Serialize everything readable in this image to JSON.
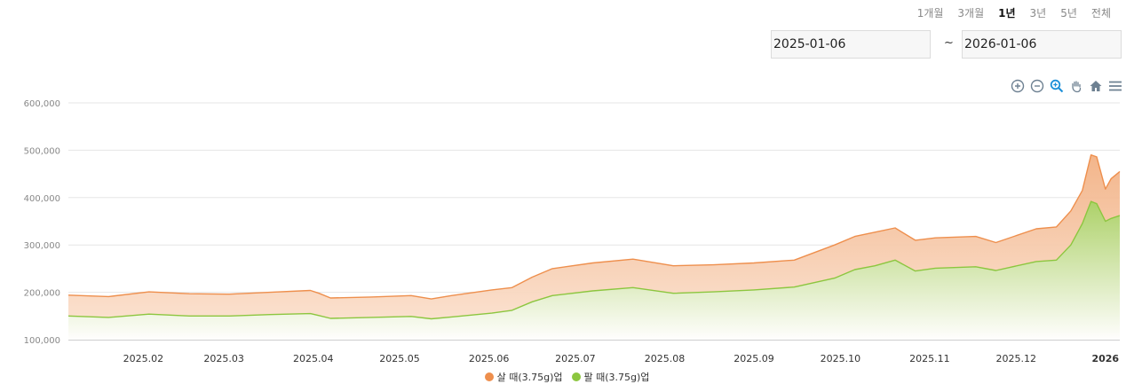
{
  "periods": [
    {
      "label": "1개월",
      "active": false
    },
    {
      "label": "3개월",
      "active": false
    },
    {
      "label": "1년",
      "active": true
    },
    {
      "label": "3년",
      "active": false
    },
    {
      "label": "5년",
      "active": false
    },
    {
      "label": "전체",
      "active": false
    }
  ],
  "date_range": {
    "start": "2025-01-06",
    "separator": "~",
    "end": "2026-01-06"
  },
  "toolbar": [
    "zoom-in-icon",
    "zoom-out-icon",
    "selection-zoom-icon",
    "pan-icon",
    "reset-home-icon",
    "menu-icon"
  ],
  "colors": {
    "buy": "#ee8f4d",
    "buy_fill": "#f6c8a5",
    "sell": "#8cc63f",
    "sell_fill": "#c4df9c",
    "grid": "#e6e6e6",
    "axis_text": "#888888"
  },
  "chart_data": {
    "type": "area",
    "xlabel": "",
    "ylabel": "",
    "ylim": [
      100000,
      600000
    ],
    "y_ticks": [
      "100,000",
      "200,000",
      "300,000",
      "400,000",
      "500,000",
      "600,000"
    ],
    "y_tick_values": [
      100000,
      200000,
      300000,
      400000,
      500000,
      600000
    ],
    "x_ticks": [
      {
        "label": "2025.02",
        "date": "2025-02-01",
        "bold": false
      },
      {
        "label": "2025.03",
        "date": "2025-03-01",
        "bold": false
      },
      {
        "label": "2025.04",
        "date": "2025-04-01",
        "bold": false
      },
      {
        "label": "2025.05",
        "date": "2025-05-01",
        "bold": false
      },
      {
        "label": "2025.06",
        "date": "2025-06-01",
        "bold": false
      },
      {
        "label": "2025.07",
        "date": "2025-07-01",
        "bold": false
      },
      {
        "label": "2025.08",
        "date": "2025-08-01",
        "bold": false
      },
      {
        "label": "2025.09",
        "date": "2025-09-01",
        "bold": false
      },
      {
        "label": "2025.10",
        "date": "2025-10-01",
        "bold": false
      },
      {
        "label": "2025.11",
        "date": "2025-11-01",
        "bold": false
      },
      {
        "label": "2025.12",
        "date": "2025-12-01",
        "bold": false
      },
      {
        "label": "2026",
        "date": "2026-01-01",
        "bold": true
      }
    ],
    "x": [
      "2025-01-06",
      "2025-01-20",
      "2025-02-03",
      "2025-02-17",
      "2025-03-03",
      "2025-03-17",
      "2025-03-31",
      "2025-04-03",
      "2025-04-07",
      "2025-04-21",
      "2025-05-05",
      "2025-05-12",
      "2025-05-19",
      "2025-06-02",
      "2025-06-09",
      "2025-06-16",
      "2025-06-23",
      "2025-07-07",
      "2025-07-21",
      "2025-08-04",
      "2025-08-18",
      "2025-09-01",
      "2025-09-15",
      "2025-09-29",
      "2025-10-06",
      "2025-10-13",
      "2025-10-20",
      "2025-10-27",
      "2025-11-03",
      "2025-11-17",
      "2025-11-24",
      "2025-12-08",
      "2025-12-15",
      "2025-12-20",
      "2025-12-24",
      "2025-12-27",
      "2025-12-29",
      "2026-01-01",
      "2026-01-03",
      "2026-01-06"
    ],
    "series": [
      {
        "name": "살 때(3.75g)",
        "values": [
          194000,
          191000,
          201000,
          197000,
          196000,
          200000,
          204000,
          198000,
          188000,
          190000,
          193000,
          186000,
          193000,
          205000,
          210000,
          232000,
          250000,
          262000,
          270000,
          256000,
          258000,
          262000,
          268000,
          300000,
          318000,
          327000,
          336000,
          310000,
          315000,
          318000,
          305000,
          334000,
          338000,
          372000,
          415000,
          490000,
          486000,
          418000,
          440000,
          455000
        ]
      },
      {
        "name": "팔 때(3.75g)",
        "values": [
          150000,
          147000,
          154000,
          150000,
          150000,
          153000,
          155000,
          151000,
          145000,
          147000,
          149000,
          144000,
          148000,
          156000,
          162000,
          180000,
          193000,
          203000,
          210000,
          198000,
          201000,
          205000,
          211000,
          230000,
          248000,
          256000,
          268000,
          245000,
          251000,
          254000,
          246000,
          265000,
          268000,
          300000,
          345000,
          392000,
          387000,
          350000,
          356000,
          362000
        ]
      }
    ]
  },
  "legend": [
    {
      "label": "살 때(3.75g)업",
      "color": "#ee8f4d"
    },
    {
      "label": "팔 때(3.75g)업",
      "color": "#8cc63f"
    }
  ]
}
